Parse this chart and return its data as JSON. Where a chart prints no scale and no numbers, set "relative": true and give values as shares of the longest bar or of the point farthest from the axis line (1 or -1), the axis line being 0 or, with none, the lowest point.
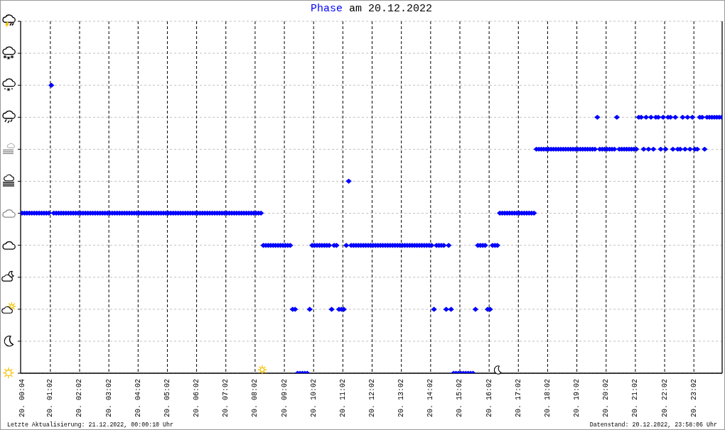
{
  "chart_data": {
    "type": "scatter",
    "title": "am 20.12.2022",
    "legend": "top",
    "relative": true,
    "grid": true,
    "marker": "diamond",
    "xlim": [
      "2022-12-20T00:01",
      "2022-12-21T00:00"
    ],
    "xticks": [
      {
        "value": "2022-12-20T00:04",
        "label": "20. 00:04"
      },
      {
        "value": "2022-12-20T01:02",
        "label": "20. 01:02"
      },
      {
        "value": "2022-12-20T02:02",
        "label": "20. 02:02"
      },
      {
        "value": "2022-12-20T03:02",
        "label": "20. 03:02"
      },
      {
        "value": "2022-12-20T04:02",
        "label": "20. 04:02"
      },
      {
        "value": "2022-12-20T05:02",
        "label": "20. 05:02"
      },
      {
        "value": "2022-12-20T06:02",
        "label": "20. 06:02"
      },
      {
        "value": "2022-12-20T07:02",
        "label": "20. 07:02"
      },
      {
        "value": "2022-12-20T08:02",
        "label": "20. 08:02"
      },
      {
        "value": "2022-12-20T09:02",
        "label": "20. 09:02"
      },
      {
        "value": "2022-12-20T10:02",
        "label": "20. 10:02"
      },
      {
        "value": "2022-12-20T11:02",
        "label": "20. 11:02"
      },
      {
        "value": "2022-12-20T12:02",
        "label": "20. 12:02"
      },
      {
        "value": "2022-12-20T13:02",
        "label": "20. 13:02"
      },
      {
        "value": "2022-12-20T14:02",
        "label": "20. 14:02"
      },
      {
        "value": "2022-12-20T15:02",
        "label": "20. 15:02"
      },
      {
        "value": "2022-12-20T16:02",
        "label": "20. 16:02"
      },
      {
        "value": "2022-12-20T17:02",
        "label": "20. 17:02"
      },
      {
        "value": "2022-12-20T18:02",
        "label": "20. 18:02"
      },
      {
        "value": "2022-12-20T19:02",
        "label": "20. 19:02"
      },
      {
        "value": "2022-12-20T20:02",
        "label": "20. 20:02"
      },
      {
        "value": "2022-12-20T21:02",
        "label": "20. 21:02"
      },
      {
        "value": "2022-12-20T22:02",
        "label": "20. 22:02"
      },
      {
        "value": "2022-12-20T23:02",
        "label": "20. 23:02"
      }
    ],
    "x": [
      "2022-12-20T00:04",
      "2022-12-20T00:09",
      "2022-12-20T00:14",
      "2022-12-20T00:19",
      "2022-12-20T00:24",
      "2022-12-20T00:29",
      "2022-12-20T00:34",
      "2022-12-20T00:39",
      "2022-12-20T00:44",
      "2022-12-20T00:49",
      "2022-12-20T00:54",
      "2022-12-20T00:59",
      "2022-12-20T01:04",
      "2022-12-20T01:09",
      "2022-12-20T01:14",
      "2022-12-20T01:19",
      "2022-12-20T01:24",
      "2022-12-20T01:29",
      "2022-12-20T01:34",
      "2022-12-20T01:39",
      "2022-12-20T01:44",
      "2022-12-20T01:49",
      "2022-12-20T01:54",
      "2022-12-20T01:59",
      "2022-12-20T02:04",
      "2022-12-20T02:09",
      "2022-12-20T02:14",
      "2022-12-20T02:19",
      "2022-12-20T02:24",
      "2022-12-20T02:29",
      "2022-12-20T02:34",
      "2022-12-20T02:39",
      "2022-12-20T02:44",
      "2022-12-20T02:49",
      "2022-12-20T02:54",
      "2022-12-20T02:59",
      "2022-12-20T03:04",
      "2022-12-20T03:09",
      "2022-12-20T03:14",
      "2022-12-20T03:19",
      "2022-12-20T03:24",
      "2022-12-20T03:29",
      "2022-12-20T03:34",
      "2022-12-20T03:39",
      "2022-12-20T03:44",
      "2022-12-20T03:49",
      "2022-12-20T03:54",
      "2022-12-20T03:59",
      "2022-12-20T04:04",
      "2022-12-20T04:09",
      "2022-12-20T04:14",
      "2022-12-20T04:19",
      "2022-12-20T04:24",
      "2022-12-20T04:29",
      "2022-12-20T04:34",
      "2022-12-20T04:39",
      "2022-12-20T04:44",
      "2022-12-20T04:49",
      "2022-12-20T04:54",
      "2022-12-20T04:59",
      "2022-12-20T05:04",
      "2022-12-20T05:09",
      "2022-12-20T05:14",
      "2022-12-20T05:19",
      "2022-12-20T05:24",
      "2022-12-20T05:29",
      "2022-12-20T05:34",
      "2022-12-20T05:39",
      "2022-12-20T05:44",
      "2022-12-20T05:49",
      "2022-12-20T05:54",
      "2022-12-20T05:59",
      "2022-12-20T06:04",
      "2022-12-20T06:09",
      "2022-12-20T06:14",
      "2022-12-20T06:19",
      "2022-12-20T06:24",
      "2022-12-20T06:29",
      "2022-12-20T06:34",
      "2022-12-20T06:39",
      "2022-12-20T06:44",
      "2022-12-20T06:49",
      "2022-12-20T06:54",
      "2022-12-20T06:59",
      "2022-12-20T07:04",
      "2022-12-20T07:09",
      "2022-12-20T07:14",
      "2022-12-20T07:19",
      "2022-12-20T07:24",
      "2022-12-20T07:29",
      "2022-12-20T07:34",
      "2022-12-20T07:39",
      "2022-12-20T07:44",
      "2022-12-20T07:49",
      "2022-12-20T07:54",
      "2022-12-20T07:59",
      "2022-12-20T08:04",
      "2022-12-20T08:09",
      "2022-12-20T08:14",
      "2022-12-20T08:19",
      "2022-12-20T08:24",
      "2022-12-20T08:29",
      "2022-12-20T08:34",
      "2022-12-20T08:39",
      "2022-12-20T08:44",
      "2022-12-20T08:49",
      "2022-12-20T08:54",
      "2022-12-20T08:59",
      "2022-12-20T09:04",
      "2022-12-20T09:09",
      "2022-12-20T09:14",
      "2022-12-20T09:19",
      "2022-12-20T09:24",
      "2022-12-20T09:29",
      "2022-12-20T09:34",
      "2022-12-20T09:39",
      "2022-12-20T09:44",
      "2022-12-20T09:49",
      "2022-12-20T09:54",
      "2022-12-20T09:59",
      "2022-12-20T10:04",
      "2022-12-20T10:09",
      "2022-12-20T10:14",
      "2022-12-20T10:19",
      "2022-12-20T10:24",
      "2022-12-20T10:29",
      "2022-12-20T10:34",
      "2022-12-20T10:39",
      "2022-12-20T10:44",
      "2022-12-20T10:49",
      "2022-12-20T10:54",
      "2022-12-20T10:59",
      "2022-12-20T11:04",
      "2022-12-20T11:09",
      "2022-12-20T11:14",
      "2022-12-20T11:19",
      "2022-12-20T11:24",
      "2022-12-20T11:29",
      "2022-12-20T11:34",
      "2022-12-20T11:39",
      "2022-12-20T11:44",
      "2022-12-20T11:49",
      "2022-12-20T11:54",
      "2022-12-20T11:59",
      "2022-12-20T12:04",
      "2022-12-20T12:09",
      "2022-12-20T12:14",
      "2022-12-20T12:19",
      "2022-12-20T12:24",
      "2022-12-20T12:29",
      "2022-12-20T12:34",
      "2022-12-20T12:39",
      "2022-12-20T12:44",
      "2022-12-20T12:49",
      "2022-12-20T12:54",
      "2022-12-20T12:59",
      "2022-12-20T13:04",
      "2022-12-20T13:09",
      "2022-12-20T13:14",
      "2022-12-20T13:19",
      "2022-12-20T13:24",
      "2022-12-20T13:29",
      "2022-12-20T13:34",
      "2022-12-20T13:39",
      "2022-12-20T13:44",
      "2022-12-20T13:49",
      "2022-12-20T13:54",
      "2022-12-20T13:59",
      "2022-12-20T14:04",
      "2022-12-20T14:09",
      "2022-12-20T14:14",
      "2022-12-20T14:19",
      "2022-12-20T14:24",
      "2022-12-20T14:29",
      "2022-12-20T14:34",
      "2022-12-20T14:39",
      "2022-12-20T14:44",
      "2022-12-20T14:49",
      "2022-12-20T14:54",
      "2022-12-20T14:59",
      "2022-12-20T15:04",
      "2022-12-20T15:09",
      "2022-12-20T15:14",
      "2022-12-20T15:19",
      "2022-12-20T15:24",
      "2022-12-20T15:29",
      "2022-12-20T15:34",
      "2022-12-20T15:39",
      "2022-12-20T15:44",
      "2022-12-20T15:49",
      "2022-12-20T15:54",
      "2022-12-20T15:59",
      "2022-12-20T16:04",
      "2022-12-20T16:09",
      "2022-12-20T16:14",
      "2022-12-20T16:19",
      "2022-12-20T16:24",
      "2022-12-20T16:29",
      "2022-12-20T16:34",
      "2022-12-20T16:39",
      "2022-12-20T16:44",
      "2022-12-20T16:49",
      "2022-12-20T16:54",
      "2022-12-20T16:59",
      "2022-12-20T17:04",
      "2022-12-20T17:09",
      "2022-12-20T17:14",
      "2022-12-20T17:19",
      "2022-12-20T17:24",
      "2022-12-20T17:29",
      "2022-12-20T17:34",
      "2022-12-20T17:39",
      "2022-12-20T17:44",
      "2022-12-20T17:49",
      "2022-12-20T17:54",
      "2022-12-20T17:59",
      "2022-12-20T18:04",
      "2022-12-20T18:09",
      "2022-12-20T18:14",
      "2022-12-20T18:19",
      "2022-12-20T18:24",
      "2022-12-20T18:29",
      "2022-12-20T18:34",
      "2022-12-20T18:39",
      "2022-12-20T18:44",
      "2022-12-20T18:49",
      "2022-12-20T18:54",
      "2022-12-20T18:59",
      "2022-12-20T19:04",
      "2022-12-20T19:09",
      "2022-12-20T19:14",
      "2022-12-20T19:19",
      "2022-12-20T19:24",
      "2022-12-20T19:29",
      "2022-12-20T19:34",
      "2022-12-20T19:39",
      "2022-12-20T19:44",
      "2022-12-20T19:49",
      "2022-12-20T19:54",
      "2022-12-20T19:59",
      "2022-12-20T20:04",
      "2022-12-20T20:09",
      "2022-12-20T20:14",
      "2022-12-20T20:19",
      "2022-12-20T20:24",
      "2022-12-20T20:29",
      "2022-12-20T20:34",
      "2022-12-20T20:39",
      "2022-12-20T20:44",
      "2022-12-20T20:49",
      "2022-12-20T20:54",
      "2022-12-20T20:59",
      "2022-12-20T21:04",
      "2022-12-20T21:09",
      "2022-12-20T21:14",
      "2022-12-20T21:19",
      "2022-12-20T21:24",
      "2022-12-20T21:29",
      "2022-12-20T21:34",
      "2022-12-20T21:39",
      "2022-12-20T21:44",
      "2022-12-20T21:49",
      "2022-12-20T21:54",
      "2022-12-20T21:59",
      "2022-12-20T22:04",
      "2022-12-20T22:09",
      "2022-12-20T22:14",
      "2022-12-20T22:19",
      "2022-12-20T22:24",
      "2022-12-20T22:29",
      "2022-12-20T22:34",
      "2022-12-20T22:39",
      "2022-12-20T22:44",
      "2022-12-20T22:49",
      "2022-12-20T22:54",
      "2022-12-20T22:59",
      "2022-12-20T23:04",
      "2022-12-20T23:09",
      "2022-12-20T23:14",
      "2022-12-20T23:19",
      "2022-12-20T23:24",
      "2022-12-20T23:29",
      "2022-12-20T23:34",
      "2022-12-20T23:39",
      "2022-12-20T23:44",
      "2022-12-20T23:49",
      "2022-12-20T23:54",
      "2022-12-20T23:59"
    ],
    "series": [
      {
        "name": "Phase",
        "color": "#0000ff",
        "values": [
          0.556,
          0.556,
          0.556,
          0.556,
          0.556,
          0.556,
          0.556,
          0.556,
          0.556,
          0.556,
          0.556,
          0.556,
          1,
          0.556,
          0.556,
          0.556,
          0.556,
          0.556,
          0.556,
          0.556,
          0.556,
          0.556,
          0.556,
          0.556,
          0.556,
          0.556,
          0.556,
          0.556,
          0.556,
          0.556,
          0.556,
          0.556,
          0.556,
          0.556,
          0.556,
          0.556,
          0.556,
          0.556,
          0.556,
          0.556,
          0.556,
          0.556,
          0.556,
          0.556,
          0.556,
          0.556,
          0.556,
          0.556,
          0.556,
          0.556,
          0.556,
          0.556,
          0.556,
          0.556,
          0.556,
          0.556,
          0.556,
          0.556,
          0.556,
          0.556,
          0.556,
          0.556,
          0.556,
          0.556,
          0.556,
          0.556,
          0.556,
          0.556,
          0.556,
          0.556,
          0.556,
          0.556,
          0.556,
          0.556,
          0.556,
          0.556,
          0.556,
          0.556,
          0.556,
          0.556,
          0.556,
          0.556,
          0.556,
          0.556,
          0.556,
          0.556,
          0.556,
          0.556,
          0.556,
          0.556,
          0.556,
          0.556,
          0.556,
          0.556,
          0.556,
          0.556,
          0.556,
          0.556,
          0.556,
          0.444,
          0.444,
          0.444,
          0.444,
          0.444,
          0.444,
          0.444,
          0.444,
          0.444,
          0.444,
          0.444,
          0.444,
          0.222,
          0.222,
          0,
          0,
          0,
          0,
          0,
          0.222,
          0.444,
          0.444,
          0.444,
          0.444,
          0.444,
          0.444,
          0.444,
          0.444,
          0.222,
          0.444,
          0.444,
          0.222,
          0.222,
          0.222,
          0.444,
          0.667,
          0.444,
          0.444,
          0.444,
          0.444,
          0.444,
          0.444,
          0.444,
          0.444,
          0.444,
          0.444,
          0.444,
          0.444,
          0.444,
          0.444,
          0.444,
          0.444,
          0.444,
          0.444,
          0.444,
          0.444,
          0.444,
          0.444,
          0.444,
          0.444,
          0.444,
          0.444,
          0.444,
          0.444,
          0.444,
          0.444,
          0.444,
          0.444,
          0.444,
          0.444,
          0.222,
          0.444,
          0.444,
          0.444,
          0.444,
          0.222,
          0.444,
          0.222,
          0,
          0,
          0,
          0,
          0,
          0,
          0,
          0,
          0,
          0.222,
          0.444,
          0.444,
          0.444,
          0.444,
          0.222,
          0.222,
          0.444,
          0.444,
          0.444,
          0.556,
          0.556,
          0.556,
          0.556,
          0.556,
          0.556,
          0.556,
          0.556,
          0.556,
          0.556,
          0.556,
          0.556,
          0.556,
          0.556,
          0.556,
          0.778,
          0.778,
          0.778,
          0.778,
          0.778,
          0.778,
          0.778,
          0.778,
          0.778,
          0.778,
          0.778,
          0.778,
          0.778,
          0.778,
          0.778,
          0.778,
          0.778,
          0.778,
          0.778,
          0.778,
          0.778,
          0.778,
          0.778,
          0.778,
          0.778,
          0.889,
          0.778,
          0.778,
          0.778,
          0.778,
          0.778,
          0.778,
          0.778,
          0.889,
          0.778,
          0.778,
          0.778,
          0.778,
          0.778,
          0.778,
          0.778,
          0.778,
          0.889,
          0.889,
          0.778,
          0.889,
          0.778,
          0.889,
          0.778,
          0.889,
          0.889,
          0.778,
          0.889,
          0.778,
          0.889,
          0.889,
          0.778,
          0.889,
          0.778,
          0.778,
          0.889,
          0.778,
          0.889,
          0.778,
          0.889,
          0.778,
          0.778,
          0.889,
          0.889,
          0.778,
          0.889,
          0.889,
          0.889,
          0.889,
          0.889,
          0.889,
          0.889
        ]
      }
    ],
    "annotations": [
      "Letzte Aktualisierung: 21.12.2022, 00:00:10 Uhr",
      "Datenstand: 20.12.2022, 23:58:06 Uhr"
    ]
  }
}
